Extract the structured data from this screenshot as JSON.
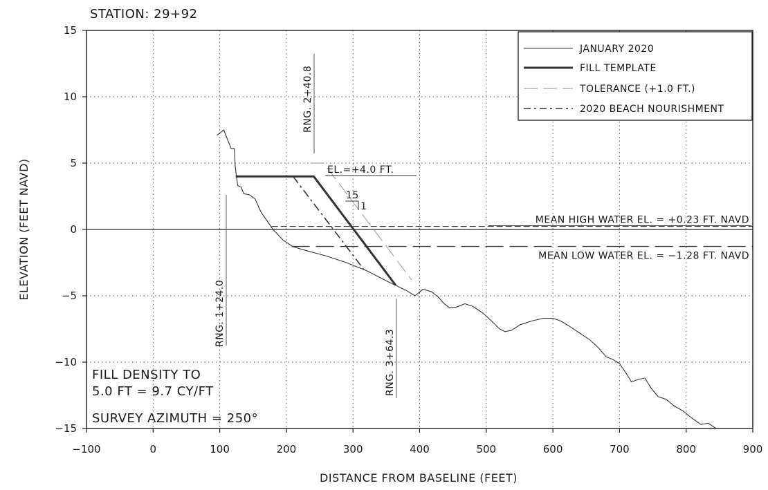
{
  "chart_data": {
    "type": "line",
    "title": "STATION:  29+92",
    "xlabel": "DISTANCE FROM BASELINE (FEET)",
    "ylabel": "ELEVATION (FEET NAVD)",
    "xlim": [
      -100,
      900
    ],
    "ylim": [
      -15,
      15
    ],
    "x_ticks": [
      -100,
      0,
      100,
      200,
      300,
      400,
      500,
      600,
      700,
      800,
      900
    ],
    "y_ticks": [
      -15,
      -10,
      -5,
      0,
      5,
      10,
      15
    ],
    "x_tick_labels": [
      "−100",
      "0",
      "100",
      "200",
      "300",
      "400",
      "500",
      "600",
      "700",
      "800",
      "900"
    ],
    "y_tick_labels": [
      "−15",
      "−10",
      "−5",
      "0",
      "5",
      "10",
      "15"
    ],
    "grid": true,
    "legend_position": "top-right",
    "series": [
      {
        "name": "JANUARY 2020",
        "style": "thin-solid",
        "color": "#333333",
        "points": [
          [
            96,
            7.1
          ],
          [
            106,
            7.5
          ],
          [
            117,
            6.1
          ],
          [
            122,
            6.1
          ],
          [
            123,
            4.9
          ],
          [
            125,
            4
          ],
          [
            127,
            3.3
          ],
          [
            132,
            3.2
          ],
          [
            136,
            2.7
          ],
          [
            145,
            2.6
          ],
          [
            153,
            2.3
          ],
          [
            162,
            1.3
          ],
          [
            180,
            0
          ],
          [
            195,
            -0.8
          ],
          [
            210,
            -1.3
          ],
          [
            230,
            -1.6
          ],
          [
            260,
            -2
          ],
          [
            290,
            -2.5
          ],
          [
            320,
            -3.1
          ],
          [
            355,
            -4
          ],
          [
            380,
            -4.6
          ],
          [
            393,
            -5
          ],
          [
            398,
            -4.8
          ],
          [
            405,
            -4.5
          ],
          [
            418,
            -4.7
          ],
          [
            428,
            -5.1
          ],
          [
            437,
            -5.6
          ],
          [
            445,
            -5.9
          ],
          [
            455,
            -5.85
          ],
          [
            468,
            -5.6
          ],
          [
            480,
            -5.8
          ],
          [
            495,
            -6.3
          ],
          [
            508,
            -6.9
          ],
          [
            520,
            -7.5
          ],
          [
            528,
            -7.7
          ],
          [
            538,
            -7.6
          ],
          [
            550,
            -7.2
          ],
          [
            568,
            -6.9
          ],
          [
            585,
            -6.7
          ],
          [
            600,
            -6.7
          ],
          [
            612,
            -6.9
          ],
          [
            625,
            -7.3
          ],
          [
            640,
            -7.8
          ],
          [
            655,
            -8.3
          ],
          [
            668,
            -8.9
          ],
          [
            680,
            -9.6
          ],
          [
            690,
            -9.8
          ],
          [
            700,
            -10.1
          ],
          [
            712,
            -11.0
          ],
          [
            718,
            -11.5
          ],
          [
            728,
            -11.3
          ],
          [
            738,
            -11.2
          ],
          [
            748,
            -12.0
          ],
          [
            758,
            -12.6
          ],
          [
            770,
            -12.8
          ],
          [
            782,
            -13.3
          ],
          [
            796,
            -13.7
          ],
          [
            808,
            -14.2
          ],
          [
            822,
            -14.7
          ],
          [
            833,
            -14.6
          ],
          [
            845,
            -15
          ]
        ]
      },
      {
        "name": "FILL TEMPLATE",
        "style": "thick-solid",
        "color": "#333333",
        "points": [
          [
            124,
            4
          ],
          [
            241,
            4
          ],
          [
            364,
            -4.2
          ]
        ]
      },
      {
        "name": "TOLERANCE (+1.0 FT.)",
        "style": "dashed-gray",
        "color": "#a6a6a6",
        "points": [
          [
            236,
            5
          ],
          [
            256,
            5
          ],
          [
            388,
            -3.8
          ]
        ]
      },
      {
        "name": "2020 BEACH NOURISHMENT",
        "style": "dash-dot",
        "color": "#333333",
        "points": [
          [
            210,
            4
          ],
          [
            319,
            -3.2
          ]
        ]
      }
    ],
    "reference_lines": [
      {
        "label": "MEAN HIGH WATER EL. = +0.23 FT. NAVD",
        "y": 0.23,
        "x_from": 178,
        "x_to": 900
      },
      {
        "label": "MEAN LOW WATER EL. = −1.28 FT. NAVD",
        "y": -1.28,
        "x_from": 208,
        "x_to": 900
      }
    ],
    "annotations": {
      "el_label": "EL.=+4.0 FT.",
      "slope_run": "15",
      "slope_rise": "1",
      "rng_left": "RNG. 1+24.0",
      "rng_mid": "RNG. 2+40.8",
      "rng_right": "RNG. 3+64.3",
      "fill_density_line1": "FILL DENSITY TO",
      "fill_density_line2": "5.0 FT = 9.7 CY/FT",
      "survey_azimuth": "SURVEY AZIMUTH = 250°"
    }
  }
}
